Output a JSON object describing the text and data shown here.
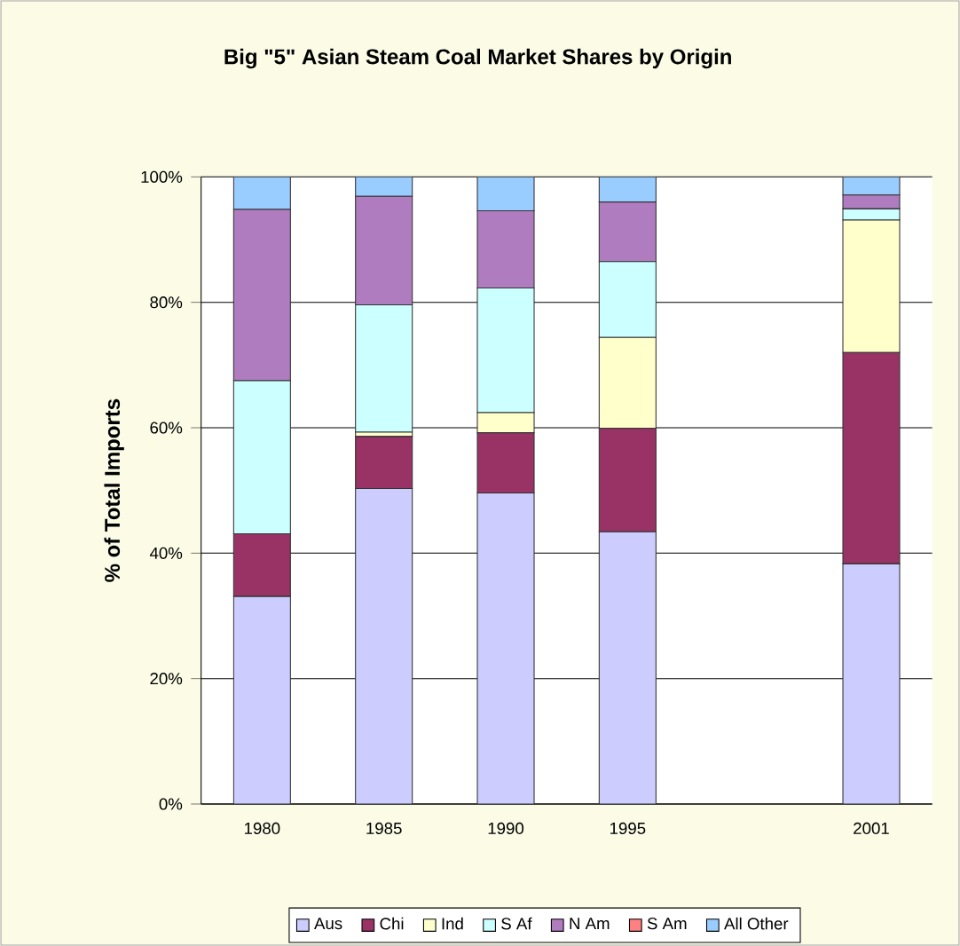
{
  "chart_data": {
    "type": "bar",
    "stacked": true,
    "title": "Big \"5\" Asian Steam Coal Market Shares by Origin",
    "ylabel": "% of Total Imports",
    "categories": [
      "1980",
      "1985",
      "1990",
      "1995",
      null,
      "2001"
    ],
    "series": [
      {
        "name": "Aus",
        "color": "#ccccff",
        "values": [
          33.1,
          50.3,
          49.6,
          43.4,
          null,
          38.3
        ]
      },
      {
        "name": "Chi",
        "color": "#993366",
        "values": [
          10.0,
          8.3,
          9.6,
          16.5,
          null,
          33.7
        ]
      },
      {
        "name": "Ind",
        "color": "#ffffcc",
        "values": [
          0,
          0.7,
          3.2,
          14.5,
          null,
          21.1
        ]
      },
      {
        "name": "S Af",
        "color": "#ccffff",
        "values": [
          24.4,
          20.3,
          19.9,
          12.1,
          null,
          1.8
        ]
      },
      {
        "name": "N Am",
        "color": "#b07cc0",
        "values": [
          27.3,
          17.3,
          12.3,
          9.5,
          null,
          2.2
        ]
      },
      {
        "name": "S Am",
        "color": "#ff8080",
        "values": [
          0,
          0,
          0,
          0,
          null,
          0
        ]
      },
      {
        "name": "All Other",
        "color": "#99ccff",
        "values": [
          5.2,
          3.1,
          5.4,
          4.0,
          null,
          2.9
        ]
      }
    ],
    "ylim": [
      0,
      100
    ],
    "yticks": [
      {
        "value": 0,
        "label": "0%"
      },
      {
        "value": 20,
        "label": "20%"
      },
      {
        "value": 40,
        "label": "40%"
      },
      {
        "value": 60,
        "label": "60%"
      },
      {
        "value": 80,
        "label": "80%"
      },
      {
        "value": 100,
        "label": "100%"
      }
    ],
    "grid": "y",
    "legend": "bottom"
  }
}
